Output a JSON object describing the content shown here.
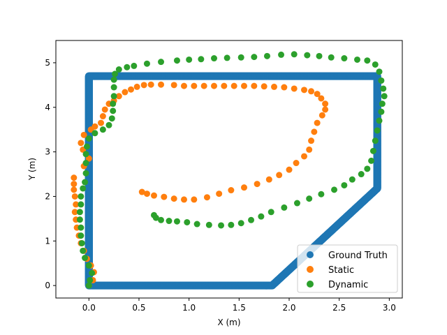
{
  "chart_data": {
    "type": "scatter",
    "xlabel": "X (m)",
    "ylabel": "Y (m)",
    "xlim": [
      -0.33,
      3.13
    ],
    "ylim": [
      -0.28,
      5.5
    ],
    "xticks": [
      {
        "v": 0,
        "label": "0.0"
      },
      {
        "v": 0.5,
        "label": "0.5"
      },
      {
        "v": 1.0,
        "label": "1.0"
      },
      {
        "v": 1.5,
        "label": "1.5"
      },
      {
        "v": 2.0,
        "label": "2.0"
      },
      {
        "v": 2.5,
        "label": "2.5"
      },
      {
        "v": 3.0,
        "label": "3.0"
      }
    ],
    "yticks": [
      {
        "v": 0,
        "label": "0"
      },
      {
        "v": 1,
        "label": "1"
      },
      {
        "v": 2,
        "label": "2"
      },
      {
        "v": 3,
        "label": "3"
      },
      {
        "v": 4,
        "label": "4"
      },
      {
        "v": 5,
        "label": "5"
      }
    ],
    "grid": false,
    "legend_position": "lower-right",
    "series": [
      {
        "name": "Ground Truth",
        "color": "#1f77b4",
        "render": "dense",
        "points": [
          [
            0.0,
            0.0
          ],
          [
            0.0,
            4.7
          ],
          [
            2.88,
            4.7
          ],
          [
            2.88,
            2.18
          ],
          [
            1.83,
            0.0
          ],
          [
            0.0,
            0.0
          ]
        ]
      },
      {
        "name": "Static",
        "color": "#ff7f0e",
        "render": "markers",
        "points": [
          [
            0.0,
            0.0
          ],
          [
            0.04,
            0.12
          ],
          [
            0.05,
            0.3
          ],
          [
            0.02,
            0.45
          ],
          [
            -0.02,
            0.6
          ],
          [
            -0.05,
            0.78
          ],
          [
            -0.08,
            0.95
          ],
          [
            -0.1,
            1.12
          ],
          [
            -0.12,
            1.3
          ],
          [
            -0.13,
            1.48
          ],
          [
            -0.14,
            1.65
          ],
          [
            -0.13,
            1.82
          ],
          [
            -0.14,
            2.0
          ],
          [
            -0.15,
            2.15
          ],
          [
            -0.15,
            2.28
          ],
          [
            -0.15,
            2.42
          ],
          [
            -0.05,
            2.68
          ],
          [
            0.0,
            2.85
          ],
          [
            -0.06,
            3.05
          ],
          [
            -0.08,
            3.2
          ],
          [
            -0.05,
            3.38
          ],
          [
            0.02,
            3.5
          ],
          [
            0.06,
            3.57
          ],
          [
            0.12,
            3.65
          ],
          [
            0.14,
            3.8
          ],
          [
            0.16,
            3.95
          ],
          [
            0.2,
            4.08
          ],
          [
            0.25,
            4.15
          ],
          [
            0.3,
            4.25
          ],
          [
            0.36,
            4.34
          ],
          [
            0.42,
            4.4
          ],
          [
            0.48,
            4.46
          ],
          [
            0.55,
            4.5
          ],
          [
            0.62,
            4.51
          ],
          [
            0.72,
            4.51
          ],
          [
            0.85,
            4.5
          ],
          [
            0.95,
            4.48
          ],
          [
            1.05,
            4.48
          ],
          [
            1.15,
            4.48
          ],
          [
            1.25,
            4.48
          ],
          [
            1.35,
            4.48
          ],
          [
            1.45,
            4.48
          ],
          [
            1.55,
            4.48
          ],
          [
            1.65,
            4.48
          ],
          [
            1.75,
            4.47
          ],
          [
            1.85,
            4.46
          ],
          [
            1.95,
            4.45
          ],
          [
            2.05,
            4.42
          ],
          [
            2.15,
            4.39
          ],
          [
            2.22,
            4.36
          ],
          [
            2.28,
            4.3
          ],
          [
            2.32,
            4.2
          ],
          [
            2.36,
            4.08
          ],
          [
            2.36,
            3.95
          ],
          [
            2.33,
            3.82
          ],
          [
            2.28,
            3.65
          ],
          [
            2.25,
            3.45
          ],
          [
            2.22,
            3.25
          ],
          [
            2.2,
            3.05
          ],
          [
            2.15,
            2.9
          ],
          [
            2.07,
            2.75
          ],
          [
            2.0,
            2.6
          ],
          [
            1.9,
            2.48
          ],
          [
            1.8,
            2.38
          ],
          [
            1.68,
            2.28
          ],
          [
            1.55,
            2.2
          ],
          [
            1.42,
            2.14
          ],
          [
            1.3,
            2.06
          ],
          [
            1.18,
            1.98
          ],
          [
            1.05,
            1.93
          ],
          [
            0.95,
            1.93
          ],
          [
            0.85,
            1.95
          ],
          [
            0.75,
            1.99
          ],
          [
            0.65,
            2.02
          ],
          [
            0.58,
            2.06
          ],
          [
            0.53,
            2.1
          ]
        ]
      },
      {
        "name": "Dynamic",
        "color": "#2ca02c",
        "render": "markers",
        "points": [
          [
            0.0,
            0.0
          ],
          [
            0.01,
            0.12
          ],
          [
            0.03,
            0.28
          ],
          [
            0.0,
            0.45
          ],
          [
            -0.04,
            0.62
          ],
          [
            -0.06,
            0.78
          ],
          [
            -0.07,
            0.95
          ],
          [
            -0.08,
            1.12
          ],
          [
            -0.08,
            1.3
          ],
          [
            -0.09,
            1.48
          ],
          [
            -0.09,
            1.65
          ],
          [
            -0.08,
            1.82
          ],
          [
            -0.08,
            2.0
          ],
          [
            -0.06,
            2.18
          ],
          [
            -0.04,
            2.32
          ],
          [
            -0.03,
            2.52
          ],
          [
            -0.03,
            2.75
          ],
          [
            -0.03,
            2.95
          ],
          [
            -0.02,
            3.12
          ],
          [
            0.0,
            3.3
          ],
          [
            0.06,
            3.42
          ],
          [
            0.14,
            3.5
          ],
          [
            0.2,
            3.6
          ],
          [
            0.23,
            3.75
          ],
          [
            0.24,
            3.92
          ],
          [
            0.24,
            4.08
          ],
          [
            0.25,
            4.25
          ],
          [
            0.25,
            4.45
          ],
          [
            0.25,
            4.62
          ],
          [
            0.26,
            4.75
          ],
          [
            0.3,
            4.85
          ],
          [
            0.38,
            4.9
          ],
          [
            0.45,
            4.93
          ],
          [
            0.58,
            4.98
          ],
          [
            0.72,
            5.02
          ],
          [
            0.88,
            5.05
          ],
          [
            1.0,
            5.07
          ],
          [
            1.12,
            5.08
          ],
          [
            1.25,
            5.1
          ],
          [
            1.38,
            5.11
          ],
          [
            1.52,
            5.12
          ],
          [
            1.65,
            5.13
          ],
          [
            1.78,
            5.15
          ],
          [
            1.92,
            5.18
          ],
          [
            2.05,
            5.19
          ],
          [
            2.18,
            5.17
          ],
          [
            2.3,
            5.15
          ],
          [
            2.42,
            5.12
          ],
          [
            2.55,
            5.1
          ],
          [
            2.68,
            5.07
          ],
          [
            2.78,
            5.05
          ],
          [
            2.86,
            4.96
          ],
          [
            2.9,
            4.8
          ],
          [
            2.92,
            4.6
          ],
          [
            2.94,
            4.42
          ],
          [
            2.95,
            4.25
          ],
          [
            2.93,
            4.08
          ],
          [
            2.92,
            3.9
          ],
          [
            2.9,
            3.7
          ],
          [
            2.88,
            3.48
          ],
          [
            2.86,
            3.25
          ],
          [
            2.84,
            3.02
          ],
          [
            2.82,
            2.8
          ],
          [
            2.78,
            2.62
          ],
          [
            2.72,
            2.5
          ],
          [
            2.63,
            2.38
          ],
          [
            2.55,
            2.25
          ],
          [
            2.45,
            2.15
          ],
          [
            2.32,
            2.05
          ],
          [
            2.2,
            1.95
          ],
          [
            2.08,
            1.85
          ],
          [
            1.95,
            1.75
          ],
          [
            1.82,
            1.65
          ],
          [
            1.72,
            1.55
          ],
          [
            1.62,
            1.47
          ],
          [
            1.52,
            1.4
          ],
          [
            1.42,
            1.36
          ],
          [
            1.32,
            1.35
          ],
          [
            1.2,
            1.36
          ],
          [
            1.08,
            1.38
          ],
          [
            0.98,
            1.42
          ],
          [
            0.88,
            1.44
          ],
          [
            0.8,
            1.45
          ],
          [
            0.72,
            1.47
          ],
          [
            0.67,
            1.52
          ],
          [
            0.65,
            1.58
          ]
        ]
      }
    ]
  }
}
